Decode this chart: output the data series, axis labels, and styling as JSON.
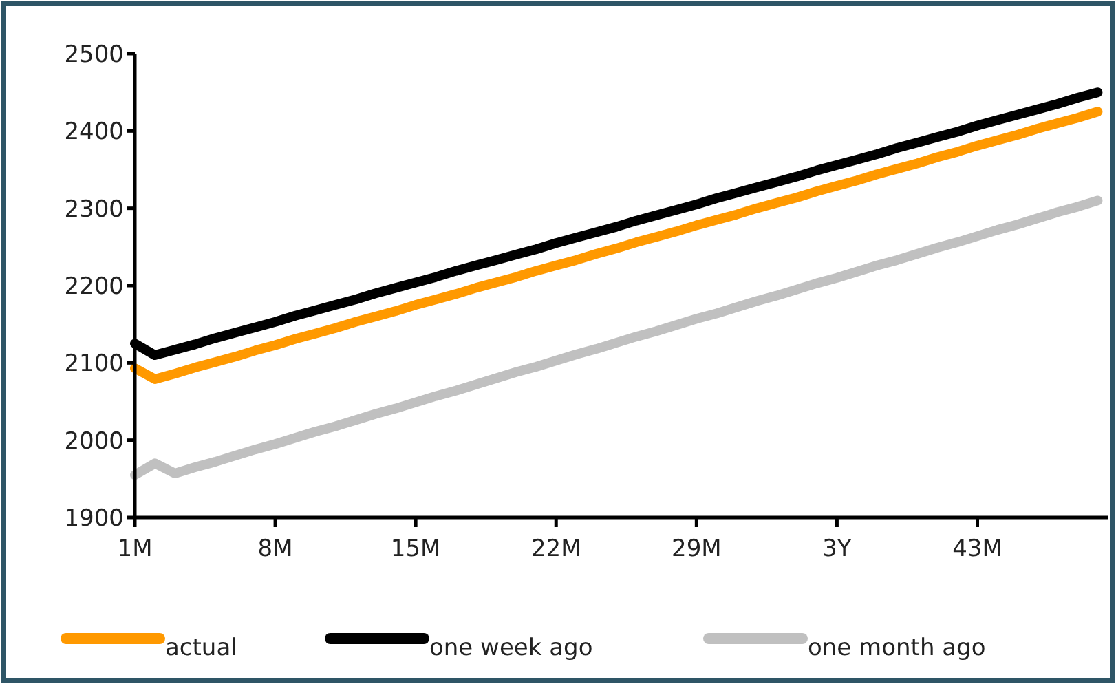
{
  "chart_data": {
    "type": "line",
    "categories": [
      "1M",
      null,
      null,
      null,
      null,
      null,
      null,
      "8M",
      null,
      null,
      null,
      null,
      null,
      null,
      "15M",
      null,
      null,
      null,
      null,
      null,
      null,
      "22M",
      null,
      null,
      null,
      null,
      null,
      null,
      "29M",
      null,
      null,
      null,
      null,
      null,
      null,
      "3Y",
      null,
      null,
      null,
      null,
      null,
      null,
      "43M",
      null,
      null,
      null,
      null,
      null,
      null
    ],
    "ylim": [
      1900,
      2500
    ],
    "yticks": [
      1900,
      2000,
      2100,
      2200,
      2300,
      2400,
      2500
    ],
    "grid": false,
    "legend": "bottom",
    "marker": "none",
    "line_style": "solid",
    "series": [
      {
        "name": "actual",
        "color": "#ff9900",
        "values": [
          2093,
          2079,
          2086,
          2094,
          2101,
          2108,
          2116,
          2123,
          2131,
          2138,
          2145,
          2153,
          2160,
          2167,
          2175,
          2182,
          2189,
          2197,
          2204,
          2211,
          2219,
          2226,
          2233,
          2241,
          2248,
          2256,
          2263,
          2270,
          2278,
          2285,
          2292,
          2300,
          2307,
          2314,
          2322,
          2329,
          2336,
          2344,
          2351,
          2358,
          2366,
          2373,
          2381,
          2388,
          2395,
          2403,
          2410,
          2417,
          2425
        ]
      },
      {
        "name": "one week ago",
        "color": "#000000",
        "values": [
          2125,
          2110,
          2117,
          2124,
          2132,
          2139,
          2146,
          2153,
          2161,
          2168,
          2175,
          2182,
          2190,
          2197,
          2204,
          2211,
          2219,
          2226,
          2233,
          2240,
          2247,
          2255,
          2262,
          2269,
          2276,
          2284,
          2291,
          2298,
          2305,
          2313,
          2320,
          2327,
          2334,
          2341,
          2349,
          2356,
          2363,
          2370,
          2378,
          2385,
          2392,
          2399,
          2407,
          2414,
          2421,
          2428,
          2435,
          2443,
          2450
        ]
      },
      {
        "name": "one month ago",
        "color": "#c0c0c0",
        "values": [
          1955,
          1970,
          1957,
          1965,
          1972,
          1980,
          1988,
          1995,
          2003,
          2011,
          2018,
          2026,
          2034,
          2041,
          2049,
          2057,
          2064,
          2072,
          2080,
          2088,
          2095,
          2103,
          2111,
          2118,
          2126,
          2134,
          2141,
          2149,
          2157,
          2164,
          2172,
          2180,
          2187,
          2195,
          2203,
          2210,
          2218,
          2226,
          2233,
          2241,
          2249,
          2256,
          2264,
          2272,
          2279,
          2287,
          2295,
          2302,
          2310
        ]
      }
    ]
  }
}
